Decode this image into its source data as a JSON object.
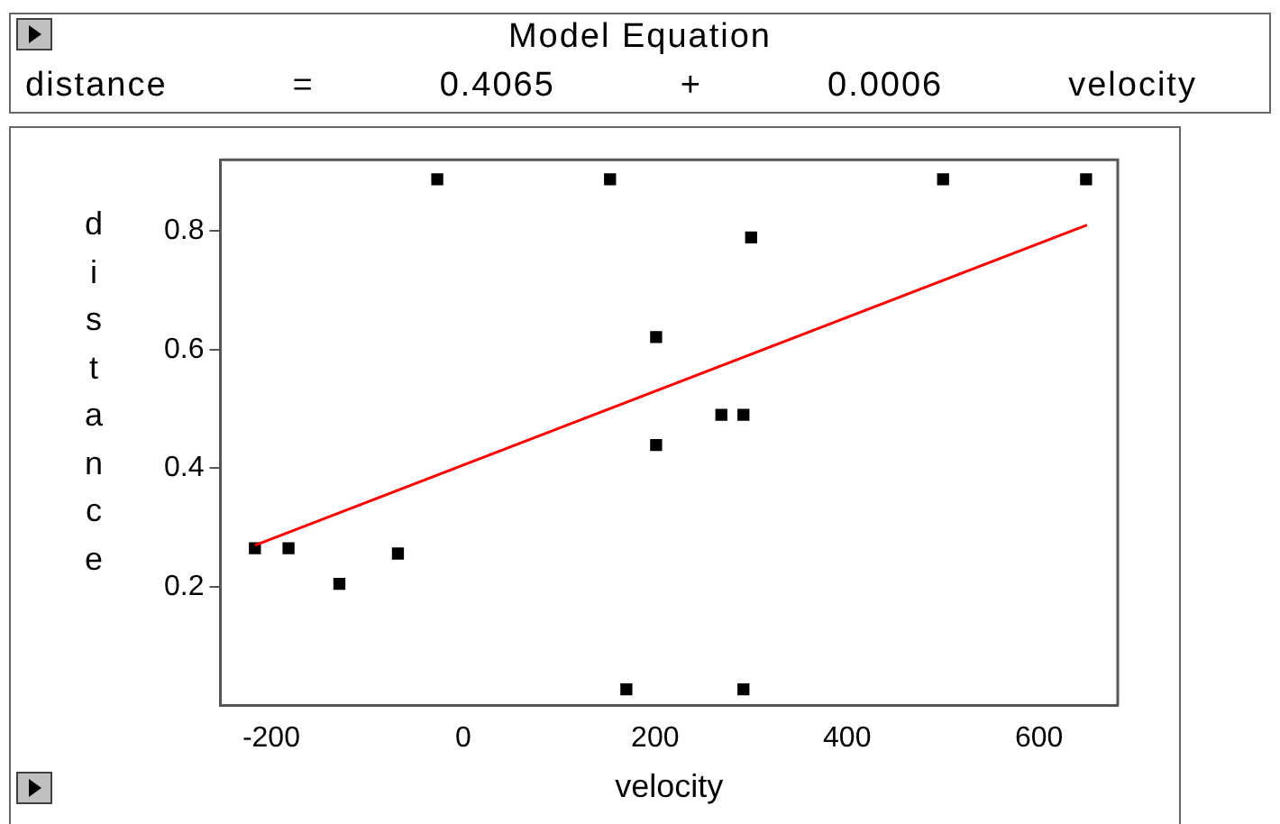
{
  "chart_data": {
    "type": "scatter",
    "title": "Model Equation",
    "annotations": [
      "distance",
      "=",
      "0.4065",
      "+",
      "0.0006",
      "velocity"
    ],
    "xlabel": "velocity",
    "ylabel": "distance",
    "xlim": [
      -253,
      682
    ],
    "xticks": [
      -200,
      0,
      200,
      400,
      600
    ],
    "ylim": [
      0,
      0.92
    ],
    "yticks": [
      0.2,
      0.4,
      0.6,
      0.8
    ],
    "grid": false,
    "legend": false,
    "series": [
      {
        "type": "scatter",
        "marker": "square",
        "color": "#000000",
        "x": [
          -217,
          -182,
          -129,
          -68,
          -27,
          153,
          170,
          201,
          201,
          269,
          292,
          292,
          300,
          500,
          649
        ],
        "values": [
          0.265,
          0.265,
          0.205,
          0.256,
          0.887,
          0.887,
          0.027,
          0.621,
          0.439,
          0.49,
          0.49,
          0.027,
          0.789,
          0.887,
          0.887
        ]
      },
      {
        "type": "line",
        "marker": "none",
        "line_style": "solid",
        "color": "#ff0000",
        "x": [
          -217,
          650
        ],
        "values": [
          0.27,
          0.81
        ]
      }
    ]
  }
}
